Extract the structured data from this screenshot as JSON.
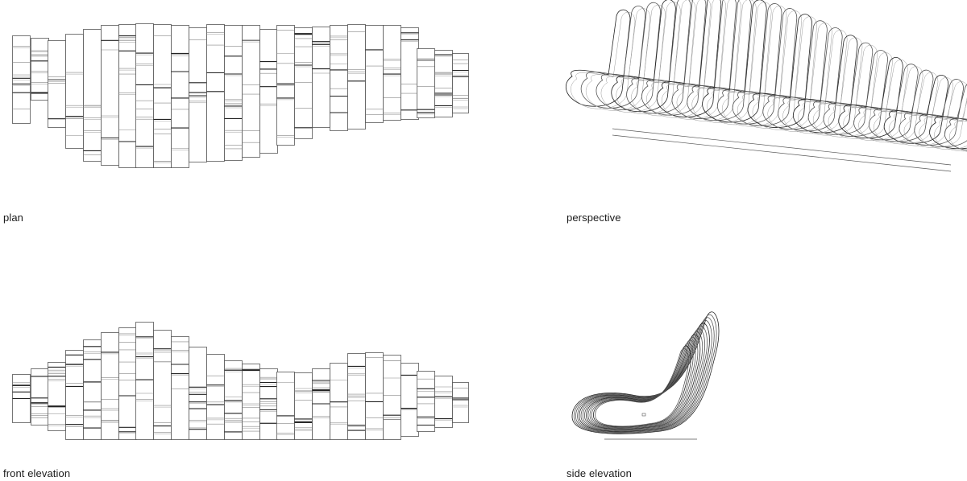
{
  "views": {
    "plan": {
      "label": "plan"
    },
    "perspective": {
      "label": "perspective"
    },
    "front_elevation": {
      "label": "front elevation"
    },
    "side_elevation": {
      "label": "side elevation"
    }
  },
  "style": {
    "line_color": "#555555",
    "dark_line_color": "#222222",
    "background": "#ffffff"
  }
}
